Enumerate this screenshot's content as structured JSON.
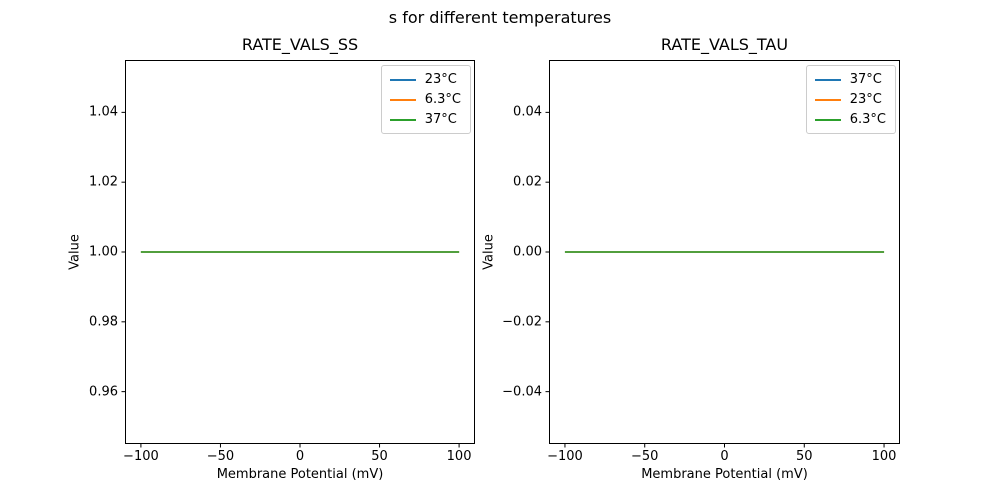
{
  "figure": {
    "suptitle": "s for different temperatures",
    "background": "#ffffff",
    "text_color": "#000000"
  },
  "chart_data": [
    {
      "type": "line",
      "title": "RATE_VALS_SS",
      "xlabel": "Membrane Potential (mV)",
      "ylabel": "Value",
      "xlim": [
        -110,
        110
      ],
      "ylim": [
        0.945,
        1.055
      ],
      "xticks": [
        -100,
        -50,
        0,
        50,
        100
      ],
      "xtick_labels": [
        "−100",
        "−50",
        "0",
        "50",
        "100"
      ],
      "yticks": [
        0.96,
        0.98,
        1.0,
        1.02,
        1.04
      ],
      "ytick_labels": [
        "0.96",
        "0.98",
        "1.00",
        "1.02",
        "1.04"
      ],
      "grid": false,
      "legend_position": "upper right",
      "x": [
        -100,
        100
      ],
      "series": [
        {
          "name": "23°C",
          "color": "#1f77b4",
          "values": [
            1.0,
            1.0
          ]
        },
        {
          "name": "6.3°C",
          "color": "#ff7f0e",
          "values": [
            1.0,
            1.0
          ]
        },
        {
          "name": "37°C",
          "color": "#2ca02c",
          "values": [
            1.0,
            1.0
          ]
        }
      ]
    },
    {
      "type": "line",
      "title": "RATE_VALS_TAU",
      "xlabel": "Membrane Potential (mV)",
      "ylabel": "Value",
      "xlim": [
        -110,
        110
      ],
      "ylim": [
        -0.055,
        0.055
      ],
      "xticks": [
        -100,
        -50,
        0,
        50,
        100
      ],
      "xtick_labels": [
        "−100",
        "−50",
        "0",
        "50",
        "100"
      ],
      "yticks": [
        -0.04,
        -0.02,
        0.0,
        0.02,
        0.04
      ],
      "ytick_labels": [
        "−0.04",
        "−0.02",
        "0.00",
        "0.02",
        "0.04"
      ],
      "grid": false,
      "legend_position": "upper right",
      "x": [
        -100,
        100
      ],
      "series": [
        {
          "name": "37°C",
          "color": "#1f77b4",
          "values": [
            0.0,
            0.0
          ]
        },
        {
          "name": "23°C",
          "color": "#ff7f0e",
          "values": [
            0.0,
            0.0
          ]
        },
        {
          "name": "6.3°C",
          "color": "#2ca02c",
          "values": [
            0.0,
            0.0
          ]
        }
      ]
    }
  ]
}
